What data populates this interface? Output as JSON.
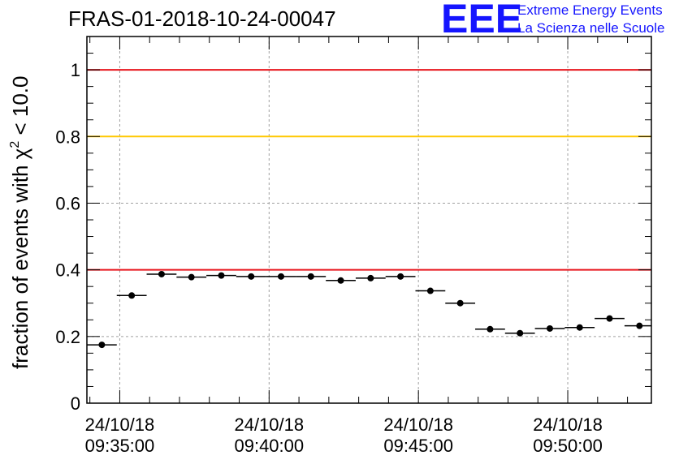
{
  "chart_data": {
    "type": "scatter",
    "title": "FRAS-01-2018-10-24-00047",
    "ylabel_prefix": "fraction of events with ",
    "ylabel_chi": "χ",
    "ylabel_sup": "2",
    "ylabel_suffix": " < 10.0",
    "xlabel": "",
    "x_ticks": [
      {
        "date": "24/10/18",
        "time": "09:35:00"
      },
      {
        "date": "24/10/18",
        "time": "09:40:00"
      },
      {
        "date": "24/10/18",
        "time": "09:45:00"
      },
      {
        "date": "24/10/18",
        "time": "09:50:00"
      }
    ],
    "x_tick_seconds": [
      0,
      300,
      600,
      900
    ],
    "xlim_seconds": [
      -66,
      1068
    ],
    "ylim": [
      0,
      1.1
    ],
    "y_ticks": [
      0,
      0.2,
      0.4,
      0.6,
      0.8,
      1
    ],
    "y_tick_labels": [
      "0",
      "0.2",
      "0.4",
      "0.6",
      "0.8",
      "1"
    ],
    "bin_width_seconds": 60,
    "points": [
      {
        "x": -36,
        "y": 0.175
      },
      {
        "x": 24,
        "y": 0.323
      },
      {
        "x": 84,
        "y": 0.387
      },
      {
        "x": 144,
        "y": 0.378
      },
      {
        "x": 204,
        "y": 0.383
      },
      {
        "x": 264,
        "y": 0.38
      },
      {
        "x": 324,
        "y": 0.38
      },
      {
        "x": 384,
        "y": 0.38
      },
      {
        "x": 444,
        "y": 0.368
      },
      {
        "x": 504,
        "y": 0.375
      },
      {
        "x": 564,
        "y": 0.38
      },
      {
        "x": 624,
        "y": 0.337
      },
      {
        "x": 684,
        "y": 0.3
      },
      {
        "x": 744,
        "y": 0.222
      },
      {
        "x": 804,
        "y": 0.21
      },
      {
        "x": 864,
        "y": 0.224
      },
      {
        "x": 924,
        "y": 0.227
      },
      {
        "x": 984,
        "y": 0.254
      },
      {
        "x": 1044,
        "y": 0.232
      }
    ],
    "reference_lines": [
      {
        "y": 1.0,
        "color": "#e8161e"
      },
      {
        "y": 0.8,
        "color": "#ffc800"
      },
      {
        "y": 0.4,
        "color": "#e8161e"
      }
    ],
    "grid": true,
    "marker_color": "#000000"
  },
  "logo": {
    "letters": "EEE",
    "line1": "Extreme Energy Events",
    "line2": "La Scienza nelle Scuole",
    "color": "#1515ff"
  }
}
